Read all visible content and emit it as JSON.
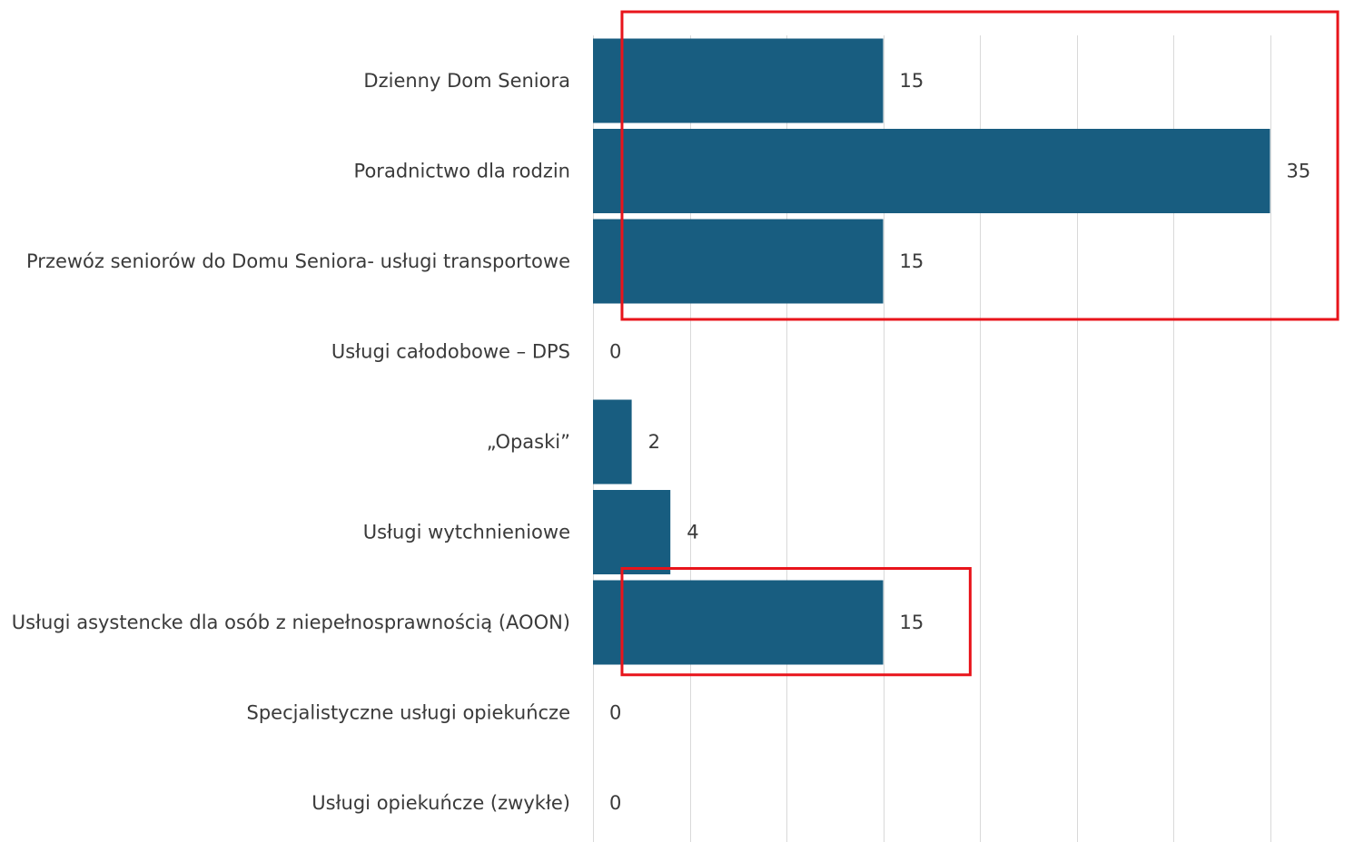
{
  "chart_data": {
    "type": "bar",
    "orientation": "horizontal",
    "title": "",
    "xlabel": "",
    "ylabel": "",
    "categories": [
      "Dzienny Dom Seniora",
      "Poradnictwo dla rodzin",
      "Przewóz seniorów do Domu Seniora- usługi transportowe",
      "Usługi całodobowe – DPS",
      "„Opaski”",
      "Usługi wytchnieniowe",
      "Usługi asystencke dla osób z niepełnosprawnością (AOON)",
      "Specjalistyczne usługi opiekuńcze",
      "Usługi opiekuńcze (zwykłe)"
    ],
    "values": [
      15,
      35,
      15,
      0,
      2,
      4,
      15,
      0,
      0
    ],
    "xlim": [
      0,
      37.5
    ],
    "grid": true,
    "gridlines_x": [
      0,
      5,
      10,
      15,
      20,
      25,
      30,
      35
    ],
    "bar_color": "#185d80",
    "data_labels": true,
    "highlights": [
      {
        "categories_from": 0,
        "categories_to": 2,
        "value_from": 1.5,
        "value_to": 38.5,
        "color": "#e8141b"
      },
      {
        "categories_from": 6,
        "categories_to": 6,
        "value_from": 1.5,
        "value_to": 19.5,
        "color": "#e8141b"
      }
    ]
  }
}
